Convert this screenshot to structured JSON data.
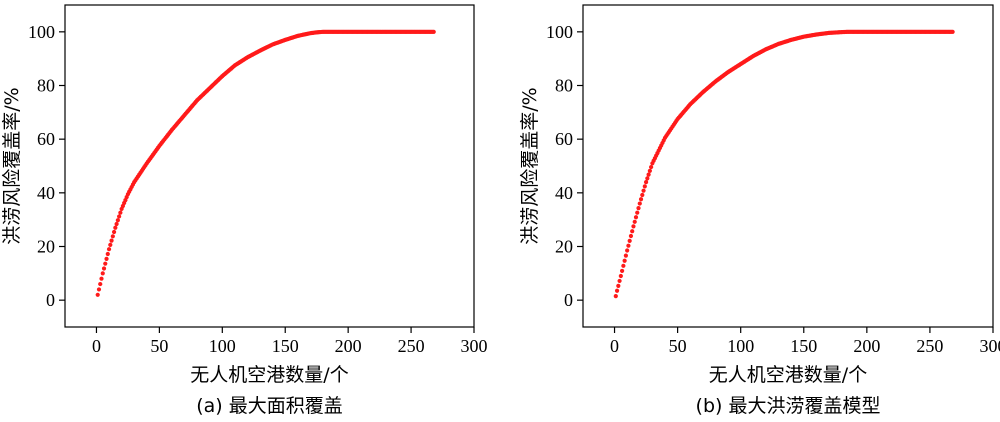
{
  "chart_data": [
    {
      "type": "scatter",
      "caption": "(a) 最大面积覆盖",
      "xlabel": "无人机空港数量/个",
      "ylabel": "洪涝风险覆盖率/%",
      "xlim": [
        -25,
        300
      ],
      "ylim": [
        -10,
        110
      ],
      "xticks": [
        0,
        50,
        100,
        150,
        200,
        250,
        300
      ],
      "yticks": [
        0,
        20,
        40,
        60,
        80,
        100
      ],
      "grid": false,
      "legend": "none",
      "series": [
        {
          "color": "#ff1a1a",
          "marker": "circle",
          "x": [
            1,
            2,
            5,
            10,
            15,
            20,
            25,
            30,
            40,
            50,
            60,
            70,
            80,
            90,
            100,
            110,
            120,
            130,
            140,
            150,
            160,
            170,
            175,
            180,
            185,
            190,
            200,
            220,
            240,
            260,
            268
          ],
          "y": [
            2.0,
            4.0,
            10.0,
            19.0,
            27.0,
            34.0,
            39.5,
            44.0,
            51.0,
            57.5,
            63.5,
            69.0,
            74.5,
            79.0,
            83.5,
            87.5,
            90.5,
            93.0,
            95.3,
            97.0,
            98.5,
            99.5,
            99.8,
            100,
            100,
            100,
            100,
            100,
            100,
            100,
            100
          ]
        }
      ]
    },
    {
      "type": "scatter",
      "caption": "(b) 最大洪涝覆盖模型",
      "xlabel": "无人机空港数量/个",
      "ylabel": "洪涝风险覆盖率/%",
      "xlim": [
        -25,
        300
      ],
      "ylim": [
        -10,
        110
      ],
      "xticks": [
        0,
        50,
        100,
        150,
        200,
        250,
        300
      ],
      "yticks": [
        0,
        20,
        40,
        60,
        80,
        100
      ],
      "grid": false,
      "legend": "none",
      "series": [
        {
          "color": "#ff1a1a",
          "marker": "circle",
          "x": [
            1,
            2,
            5,
            10,
            15,
            20,
            25,
            30,
            40,
            50,
            60,
            70,
            80,
            90,
            100,
            110,
            120,
            130,
            140,
            150,
            160,
            170,
            180,
            185,
            190,
            200,
            220,
            240,
            260,
            268
          ],
          "y": [
            1.5,
            3.5,
            9.0,
            18.5,
            27.5,
            36.0,
            44.0,
            51.0,
            60.5,
            67.5,
            73.0,
            77.5,
            81.5,
            85.0,
            88.0,
            91.0,
            93.5,
            95.5,
            97.0,
            98.2,
            99.0,
            99.6,
            99.9,
            100,
            100,
            100,
            100,
            100,
            100,
            100
          ]
        }
      ]
    }
  ]
}
